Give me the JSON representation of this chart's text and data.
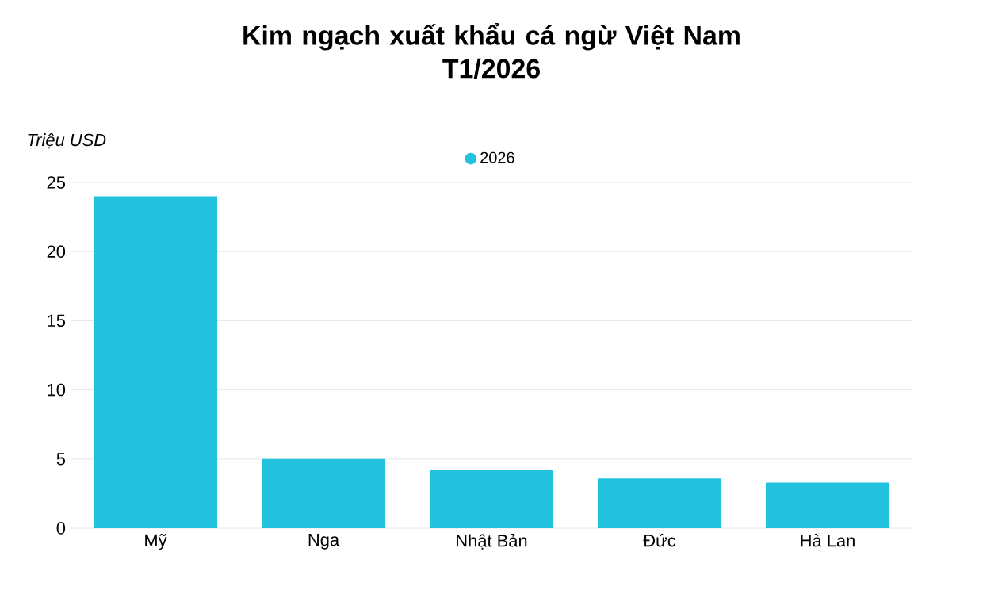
{
  "chart_data": {
    "type": "bar",
    "title": "Kim ngạch xuất khẩu cá ngừ Việt Nam\nT1/2026",
    "ylabel": "Triệu USD",
    "categories": [
      "Mỹ",
      "Nga",
      "Nhật Bản",
      "Đức",
      "Hà Lan"
    ],
    "series": [
      {
        "name": "2026",
        "color": "#22c1de",
        "values": [
          24,
          5,
          4.2,
          3.6,
          3.3
        ]
      }
    ],
    "ylim": [
      0,
      25
    ],
    "yticks": [
      0,
      5,
      10,
      15,
      20,
      25
    ],
    "grid": "y",
    "legend": "top"
  }
}
